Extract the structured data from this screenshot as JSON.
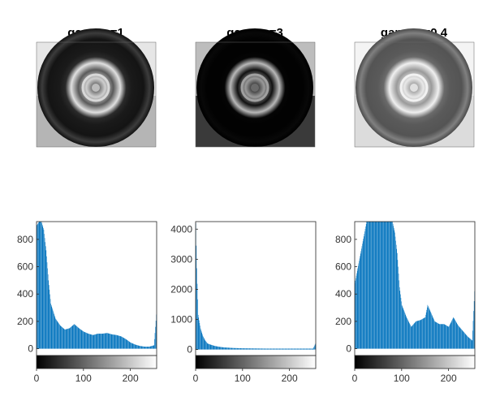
{
  "figure": {
    "panels": [
      {
        "title": "gamma=1",
        "image_label": "tire-image-gamma-1"
      },
      {
        "title": "gamma=3",
        "image_label": "tire-image-gamma-3"
      },
      {
        "title": "gamma=0.4",
        "image_label": "tire-image-gamma-0.4"
      }
    ]
  },
  "chart_data": [
    {
      "type": "bar",
      "title": "",
      "xlabel": "",
      "ylabel": "",
      "xlim": [
        0,
        256
      ],
      "ylim": [
        -50,
        930
      ],
      "x_ticks": [
        0,
        100,
        200
      ],
      "y_ticks": [
        0,
        200,
        400,
        600,
        800
      ],
      "colorbar": "grayscale 0-255 below axis",
      "color": "#0072BD",
      "x": [
        0,
        5,
        10,
        15,
        20,
        25,
        30,
        40,
        50,
        60,
        70,
        80,
        90,
        100,
        110,
        120,
        130,
        140,
        150,
        160,
        170,
        180,
        190,
        200,
        210,
        220,
        230,
        240,
        250,
        255
      ],
      "values": [
        900,
        930,
        930,
        870,
        720,
        500,
        330,
        220,
        170,
        140,
        150,
        180,
        150,
        125,
        110,
        100,
        110,
        110,
        115,
        105,
        100,
        90,
        70,
        45,
        30,
        20,
        15,
        15,
        25,
        250
      ]
    },
    {
      "type": "bar",
      "title": "",
      "xlabel": "",
      "ylabel": "",
      "xlim": [
        0,
        256
      ],
      "ylim": [
        -200,
        4250
      ],
      "x_ticks": [
        0,
        100,
        200
      ],
      "y_ticks": [
        0,
        1000,
        2000,
        3000,
        4000
      ],
      "colorbar": "grayscale 0-255 below axis",
      "color": "#0072BD",
      "x": [
        0,
        2,
        5,
        10,
        15,
        20,
        25,
        30,
        40,
        50,
        60,
        80,
        100,
        150,
        200,
        250,
        255
      ],
      "values": [
        4200,
        2700,
        1150,
        700,
        450,
        300,
        200,
        170,
        120,
        90,
        70,
        50,
        40,
        30,
        30,
        30,
        200
      ]
    },
    {
      "type": "bar",
      "title": "",
      "xlabel": "",
      "ylabel": "",
      "xlim": [
        0,
        256
      ],
      "ylim": [
        -50,
        930
      ],
      "x_ticks": [
        0,
        100,
        200
      ],
      "y_ticks": [
        0,
        200,
        400,
        600,
        800
      ],
      "colorbar": "grayscale 0-255 below axis",
      "color": "#0072BD",
      "x": [
        0,
        25,
        35,
        45,
        50,
        55,
        60,
        65,
        70,
        75,
        80,
        85,
        90,
        95,
        100,
        110,
        120,
        130,
        140,
        150,
        155,
        160,
        170,
        180,
        190,
        200,
        210,
        220,
        230,
        240,
        250,
        255
      ],
      "values": [
        480,
        930,
        930,
        930,
        930,
        930,
        930,
        930,
        930,
        930,
        930,
        850,
        700,
        450,
        320,
        230,
        160,
        200,
        210,
        230,
        320,
        280,
        200,
        180,
        180,
        160,
        230,
        170,
        130,
        90,
        60,
        420
      ]
    }
  ]
}
